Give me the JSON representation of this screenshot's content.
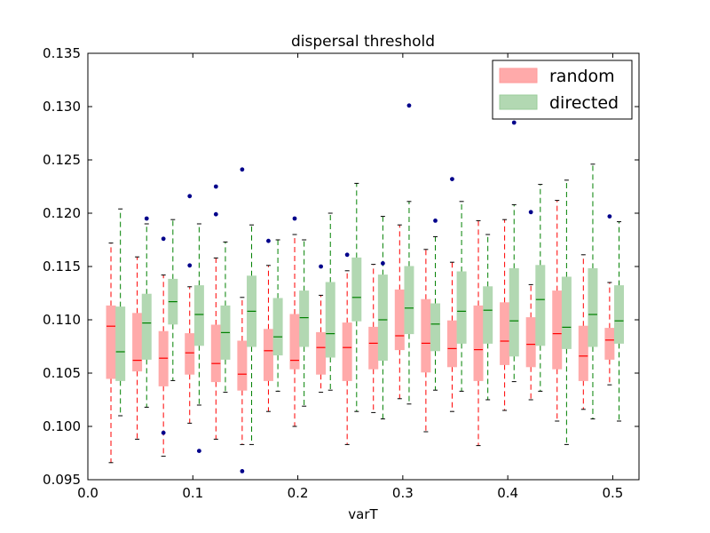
{
  "chart_data": {
    "type": "box",
    "title": "dispersal threshold",
    "xlabel": "varT",
    "ylabel": "",
    "xlim": [
      0.0,
      0.525
    ],
    "ylim": [
      0.095,
      0.135
    ],
    "xticks": [
      0.0,
      0.1,
      0.2,
      0.3,
      0.4,
      0.5
    ],
    "xtick_labels": [
      "0.0",
      "0.1",
      "0.2",
      "0.3",
      "0.4",
      "0.5"
    ],
    "yticks": [
      0.095,
      0.1,
      0.105,
      0.11,
      0.115,
      0.12,
      0.125,
      0.13,
      0.135
    ],
    "ytick_labels": [
      "0.095",
      "0.100",
      "0.105",
      "0.110",
      "0.115",
      "0.120",
      "0.125",
      "0.130",
      "0.135"
    ],
    "legend_position": "top-right",
    "series": [
      {
        "name": "random",
        "color": "#ff0000",
        "fill": "#ffaaaa",
        "boxes": [
          {
            "x": 0.022,
            "whislo": 0.0966,
            "q1": 0.1045,
            "med": 0.1094,
            "q3": 0.1113,
            "whishi": 0.1172,
            "fliers": []
          },
          {
            "x": 0.047,
            "whislo": 0.0988,
            "q1": 0.1052,
            "med": 0.1062,
            "q3": 0.1106,
            "whishi": 0.1159,
            "fliers": []
          },
          {
            "x": 0.072,
            "whislo": 0.0972,
            "q1": 0.1038,
            "med": 0.1064,
            "q3": 0.1089,
            "whishi": 0.1142,
            "fliers": [
              0.1176,
              0.0994
            ]
          },
          {
            "x": 0.097,
            "whislo": 0.1003,
            "q1": 0.1049,
            "med": 0.1069,
            "q3": 0.1087,
            "whishi": 0.1131,
            "fliers": [
              0.1151,
              0.1216
            ]
          },
          {
            "x": 0.122,
            "whislo": 0.0988,
            "q1": 0.1042,
            "med": 0.1059,
            "q3": 0.1095,
            "whishi": 0.1158,
            "fliers": [
              0.1225,
              0.1199
            ]
          },
          {
            "x": 0.147,
            "whislo": 0.0983,
            "q1": 0.1034,
            "med": 0.1049,
            "q3": 0.108,
            "whishi": 0.1121,
            "fliers": [
              0.1241,
              0.0958
            ]
          },
          {
            "x": 0.172,
            "whislo": 0.1014,
            "q1": 0.1043,
            "med": 0.1071,
            "q3": 0.1091,
            "whishi": 0.1151,
            "fliers": [
              0.1174
            ]
          },
          {
            "x": 0.197,
            "whislo": 0.1,
            "q1": 0.1054,
            "med": 0.1062,
            "q3": 0.1105,
            "whishi": 0.118,
            "fliers": [
              0.1195
            ]
          },
          {
            "x": 0.222,
            "whislo": 0.1032,
            "q1": 0.1049,
            "med": 0.1074,
            "q3": 0.1088,
            "whishi": 0.1123,
            "fliers": [
              0.115
            ]
          },
          {
            "x": 0.247,
            "whislo": 0.0983,
            "q1": 0.1043,
            "med": 0.1074,
            "q3": 0.1097,
            "whishi": 0.1146,
            "fliers": [
              0.1161
            ]
          },
          {
            "x": 0.272,
            "whislo": 0.1013,
            "q1": 0.1054,
            "med": 0.1078,
            "q3": 0.1093,
            "whishi": 0.1152,
            "fliers": []
          },
          {
            "x": 0.297,
            "whislo": 0.1026,
            "q1": 0.1072,
            "med": 0.1085,
            "q3": 0.1128,
            "whishi": 0.1189,
            "fliers": []
          },
          {
            "x": 0.322,
            "whislo": 0.0995,
            "q1": 0.1051,
            "med": 0.1078,
            "q3": 0.1119,
            "whishi": 0.1166,
            "fliers": []
          },
          {
            "x": 0.347,
            "whislo": 0.1014,
            "q1": 0.1056,
            "med": 0.1073,
            "q3": 0.1099,
            "whishi": 0.1154,
            "fliers": [
              0.1232
            ]
          },
          {
            "x": 0.372,
            "whislo": 0.0982,
            "q1": 0.1043,
            "med": 0.1072,
            "q3": 0.1113,
            "whishi": 0.1193,
            "fliers": []
          },
          {
            "x": 0.397,
            "whislo": 0.1015,
            "q1": 0.1058,
            "med": 0.108,
            "q3": 0.1116,
            "whishi": 0.1194,
            "fliers": []
          },
          {
            "x": 0.422,
            "whislo": 0.1025,
            "q1": 0.1056,
            "med": 0.1077,
            "q3": 0.1102,
            "whishi": 0.1133,
            "fliers": [
              0.1201
            ]
          },
          {
            "x": 0.447,
            "whislo": 0.1005,
            "q1": 0.1054,
            "med": 0.1087,
            "q3": 0.1127,
            "whishi": 0.1212,
            "fliers": []
          },
          {
            "x": 0.472,
            "whislo": 0.1016,
            "q1": 0.1043,
            "med": 0.1066,
            "q3": 0.1094,
            "whishi": 0.1161,
            "fliers": []
          },
          {
            "x": 0.497,
            "whislo": 0.1039,
            "q1": 0.1063,
            "med": 0.1081,
            "q3": 0.1092,
            "whishi": 0.1135,
            "fliers": [
              0.1197
            ]
          }
        ]
      },
      {
        "name": "directed",
        "color": "#008000",
        "fill": "#b2d8b2",
        "boxes": [
          {
            "x": 0.031,
            "whislo": 0.101,
            "q1": 0.1043,
            "med": 0.107,
            "q3": 0.1112,
            "whishi": 0.1204,
            "fliers": []
          },
          {
            "x": 0.056,
            "whislo": 0.1018,
            "q1": 0.1063,
            "med": 0.1097,
            "q3": 0.1124,
            "whishi": 0.119,
            "fliers": [
              0.1195
            ]
          },
          {
            "x": 0.081,
            "whislo": 0.1043,
            "q1": 0.1096,
            "med": 0.1117,
            "q3": 0.1138,
            "whishi": 0.1194,
            "fliers": []
          },
          {
            "x": 0.106,
            "whislo": 0.102,
            "q1": 0.1076,
            "med": 0.1105,
            "q3": 0.1132,
            "whishi": 0.119,
            "fliers": [
              0.0977
            ]
          },
          {
            "x": 0.131,
            "whislo": 0.1032,
            "q1": 0.1063,
            "med": 0.1088,
            "q3": 0.1113,
            "whishi": 0.1173,
            "fliers": []
          },
          {
            "x": 0.156,
            "whislo": 0.0983,
            "q1": 0.1075,
            "med": 0.1108,
            "q3": 0.1141,
            "whishi": 0.1189,
            "fliers": []
          },
          {
            "x": 0.181,
            "whislo": 0.1033,
            "q1": 0.1067,
            "med": 0.1084,
            "q3": 0.112,
            "whishi": 0.1175,
            "fliers": []
          },
          {
            "x": 0.206,
            "whislo": 0.1019,
            "q1": 0.1075,
            "med": 0.1102,
            "q3": 0.1127,
            "whishi": 0.1175,
            "fliers": []
          },
          {
            "x": 0.231,
            "whislo": 0.1034,
            "q1": 0.1065,
            "med": 0.1087,
            "q3": 0.1135,
            "whishi": 0.12,
            "fliers": []
          },
          {
            "x": 0.256,
            "whislo": 0.1014,
            "q1": 0.1099,
            "med": 0.1121,
            "q3": 0.1158,
            "whishi": 0.1228,
            "fliers": []
          },
          {
            "x": 0.281,
            "whislo": 0.1007,
            "q1": 0.1062,
            "med": 0.11,
            "q3": 0.1142,
            "whishi": 0.1197,
            "fliers": [
              0.1153
            ]
          },
          {
            "x": 0.306,
            "whislo": 0.1021,
            "q1": 0.1087,
            "med": 0.1111,
            "q3": 0.115,
            "whishi": 0.1211,
            "fliers": [
              0.1301
            ]
          },
          {
            "x": 0.331,
            "whislo": 0.1034,
            "q1": 0.1071,
            "med": 0.1096,
            "q3": 0.1115,
            "whishi": 0.1178,
            "fliers": [
              0.1193
            ]
          },
          {
            "x": 0.356,
            "whislo": 0.1033,
            "q1": 0.1078,
            "med": 0.1108,
            "q3": 0.1145,
            "whishi": 0.1211,
            "fliers": []
          },
          {
            "x": 0.381,
            "whislo": 0.1025,
            "q1": 0.1078,
            "med": 0.1109,
            "q3": 0.1131,
            "whishi": 0.118,
            "fliers": []
          },
          {
            "x": 0.406,
            "whislo": 0.1042,
            "q1": 0.1066,
            "med": 0.1099,
            "q3": 0.1148,
            "whishi": 0.1208,
            "fliers": [
              0.1285
            ]
          },
          {
            "x": 0.431,
            "whislo": 0.1033,
            "q1": 0.1076,
            "med": 0.1119,
            "q3": 0.1151,
            "whishi": 0.1227,
            "fliers": []
          },
          {
            "x": 0.456,
            "whislo": 0.0983,
            "q1": 0.1073,
            "med": 0.1093,
            "q3": 0.114,
            "whishi": 0.1231,
            "fliers": []
          },
          {
            "x": 0.481,
            "whislo": 0.1007,
            "q1": 0.1075,
            "med": 0.1105,
            "q3": 0.1148,
            "whishi": 0.1246,
            "fliers": []
          },
          {
            "x": 0.506,
            "whislo": 0.1005,
            "q1": 0.1078,
            "med": 0.1099,
            "q3": 0.1132,
            "whishi": 0.1192,
            "fliers": []
          }
        ]
      }
    ],
    "flier_color": "#00008b"
  }
}
